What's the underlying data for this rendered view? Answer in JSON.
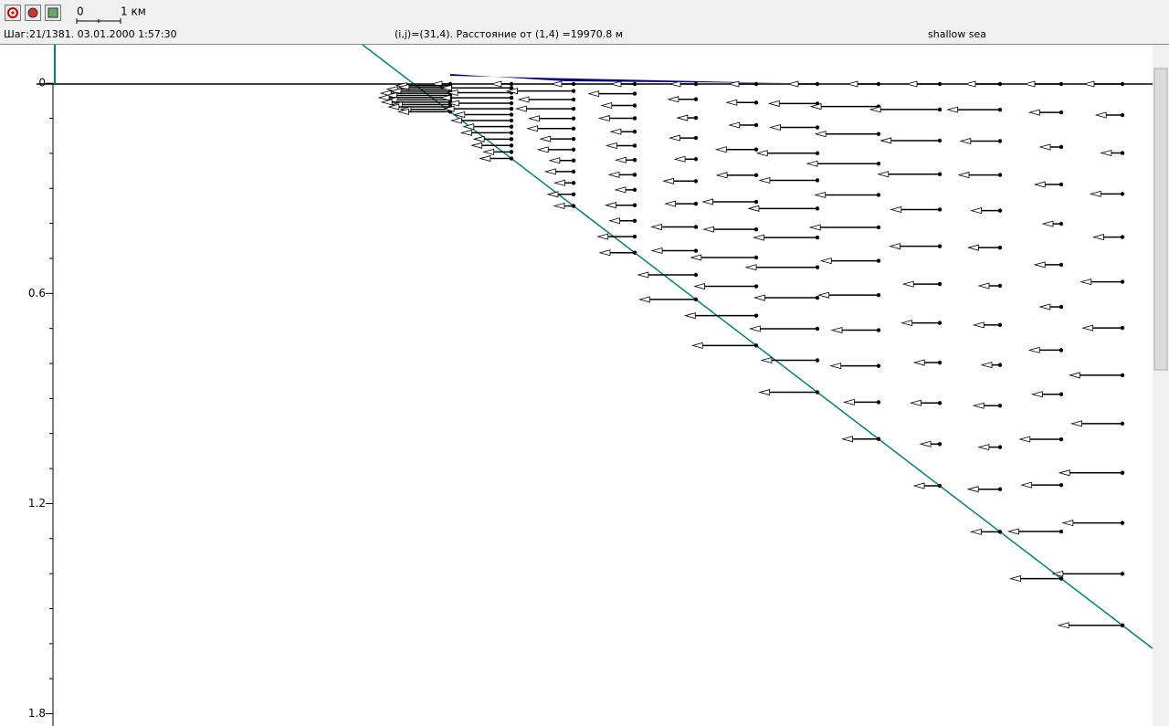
{
  "toolbar": {
    "scale_start": "0",
    "scale_end": "1 км"
  },
  "status": {
    "step": "Шаг:21/1381. 03.01.2000 1:57:30",
    "position": "(i,j)=(31,4). Расстояние от (1,4) =19970.8 м",
    "scenario": "shallow sea"
  },
  "plot": {
    "ylim": [
      -0.11,
      1.835
    ],
    "yticks": [
      0,
      0.6,
      1.2,
      1.8
    ]
  }
}
